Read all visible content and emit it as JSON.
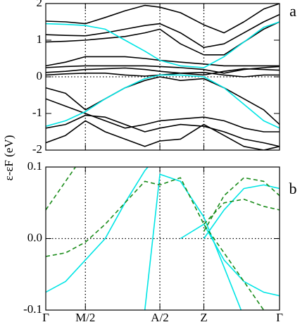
{
  "chart_data": [
    {
      "type": "line",
      "label": "a",
      "ylabel": "ε-εF (eV)",
      "x": [
        0,
        0.5,
        1,
        1.5,
        2,
        2.5,
        2.88,
        3.4,
        3.99,
        4.5,
        5,
        5.5,
        5.9
      ],
      "xlim": [
        0,
        5.9
      ],
      "xticks": [
        0,
        1,
        2.88,
        3.99,
        5.9
      ],
      "ylim": [
        -2,
        2
      ],
      "yticks": [
        -2,
        -1,
        0,
        1,
        2
      ],
      "grid": "dotted",
      "zero_line": true,
      "series": [
        {
          "color": "#000000",
          "values": [
            1.52,
            1.5,
            1.45,
            1.62,
            1.8,
            1.95,
            1.9,
            1.75,
            1.42,
            1.2,
            1.5,
            1.85,
            2.0
          ]
        },
        {
          "color": "#000000",
          "values": [
            1.15,
            1.13,
            1.12,
            1.2,
            1.3,
            1.4,
            1.45,
            1.2,
            0.8,
            0.9,
            1.2,
            1.5,
            1.7
          ]
        },
        {
          "color": "#000000",
          "values": [
            0.95,
            0.97,
            1.0,
            1.05,
            1.1,
            1.2,
            1.3,
            0.9,
            0.6,
            0.6,
            0.95,
            1.3,
            1.5
          ]
        },
        {
          "color": "#000000",
          "values": [
            0.3,
            0.4,
            0.55,
            0.55,
            0.55,
            0.5,
            0.45,
            0.4,
            0.35,
            0.3,
            0.3,
            0.3,
            0.3
          ]
        },
        {
          "color": "#000000",
          "values": [
            0.25,
            0.28,
            0.3,
            0.3,
            0.3,
            0.3,
            0.28,
            0.25,
            0.2,
            0.1,
            0.2,
            0.25,
            0.28
          ]
        },
        {
          "color": "#000000",
          "values": [
            0.12,
            0.15,
            0.2,
            0.22,
            0.24,
            0.2,
            0.15,
            0.1,
            0.05,
            0.15,
            0.22,
            0.2,
            0.18
          ]
        },
        {
          "color": "#000000",
          "values": [
            0.05,
            0.08,
            0.1,
            0.1,
            0.05,
            0.02,
            0.05,
            0.1,
            0.12,
            0.05,
            0.0,
            0.05,
            0.05
          ]
        },
        {
          "color": "#000000",
          "values": [
            -0.3,
            -0.45,
            -0.9,
            -0.6,
            -0.3,
            -0.1,
            0.0,
            -0.1,
            -0.05,
            -0.3,
            -0.6,
            -0.9,
            -1.3
          ]
        },
        {
          "color": "#000000",
          "values": [
            -0.6,
            -0.8,
            -1.0,
            -1.2,
            -1.4,
            -1.3,
            -1.2,
            -1.15,
            -1.1,
            -1.2,
            -1.4,
            -1.5,
            -1.5
          ]
        },
        {
          "color": "#000000",
          "values": [
            -1.4,
            -1.3,
            -1.05,
            -1.1,
            -1.3,
            -1.5,
            -1.4,
            -1.3,
            -1.35,
            -1.5,
            -1.7,
            -1.8,
            -1.9
          ]
        },
        {
          "color": "#000000",
          "values": [
            -1.8,
            -1.6,
            -1.2,
            -1.5,
            -1.7,
            -1.9,
            -1.75,
            -1.7,
            -1.3,
            -1.6,
            -1.9,
            -2.0,
            -1.9
          ]
        },
        {
          "color": "#00e5e5",
          "values": [
            1.45,
            1.43,
            1.4,
            1.3,
            1.0,
            0.7,
            0.45,
            0.3,
            0.25,
            0.55,
            0.95,
            1.35,
            1.5
          ]
        },
        {
          "color": "#00e5e5",
          "values": [
            -1.35,
            -1.2,
            -0.95,
            -0.6,
            -0.3,
            -0.05,
            0.05,
            0.05,
            0.0,
            -0.3,
            -0.75,
            -1.2,
            -1.4
          ]
        }
      ]
    },
    {
      "type": "line",
      "label": "b",
      "x": [
        0,
        0.5,
        1,
        1.5,
        2,
        2.5,
        2.88,
        3.4,
        3.99,
        4.5,
        5,
        5.5,
        5.9
      ],
      "xlim": [
        0,
        5.9
      ],
      "xticks": [
        {
          "value": 0,
          "label": "Γ"
        },
        {
          "value": 1,
          "label": "M/2"
        },
        {
          "value": 2.88,
          "label": "A/2"
        },
        {
          "value": 3.99,
          "label": "Z"
        },
        {
          "value": 5.9,
          "label": "Γ"
        }
      ],
      "ylim": [
        -0.1,
        0.1
      ],
      "yticks": [
        -0.1,
        {
          "value": 0,
          "label": "0.0"
        },
        0.1
      ],
      "grid": "dotted",
      "zero_line": true,
      "series": [
        {
          "color": "#00e5e5",
          "values": [
            -0.075,
            -0.06,
            -0.03,
            0.0,
            0.05,
            0.095,
            0.12,
            null,
            null,
            null,
            null,
            null,
            null
          ]
        },
        {
          "color": "#00e5e5",
          "values": [
            null,
            null,
            null,
            null,
            null,
            -0.1,
            0.09,
            0.08,
            0.03,
            -0.04,
            -0.11,
            null,
            null
          ]
        },
        {
          "color": "#00e5e5",
          "values": [
            null,
            null,
            null,
            null,
            null,
            null,
            null,
            null,
            0.0,
            0.04,
            0.07,
            0.075,
            0.07
          ]
        },
        {
          "color": "#00e5e5",
          "values": [
            null,
            null,
            null,
            null,
            null,
            null,
            null,
            0.0,
            0.02,
            -0.03,
            -0.06,
            -0.075,
            -0.08
          ]
        },
        {
          "color": "#1a8c1a",
          "dash": true,
          "values": [
            0.04,
            0.08,
            0.12,
            null,
            null,
            null,
            null,
            null,
            null,
            null,
            null,
            null,
            null
          ]
        },
        {
          "color": "#1a8c1a",
          "dash": true,
          "values": [
            -0.025,
            -0.02,
            -0.005,
            0.02,
            0.05,
            0.08,
            0.075,
            0.085,
            0.02,
            -0.02,
            -0.06,
            -0.1,
            null
          ]
        },
        {
          "color": "#1a8c1a",
          "dash": true,
          "values": [
            null,
            null,
            null,
            null,
            null,
            null,
            null,
            null,
            0.01,
            0.06,
            0.085,
            0.08,
            0.06
          ]
        },
        {
          "color": "#1a8c1a",
          "dash": true,
          "values": [
            null,
            null,
            null,
            null,
            null,
            null,
            null,
            null,
            0.02,
            0.05,
            0.055,
            0.045,
            0.04
          ]
        }
      ]
    }
  ]
}
